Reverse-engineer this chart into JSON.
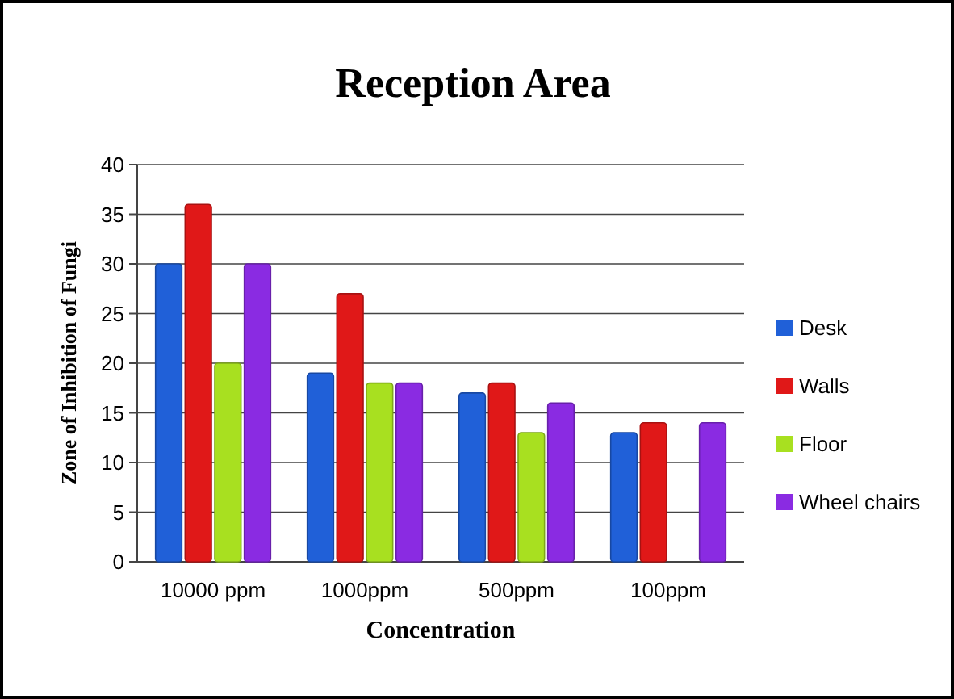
{
  "chart_data": {
    "type": "bar",
    "title": "Reception Area",
    "xlabel": "Concentration",
    "ylabel": "Zone of Inhibition  of Fungi",
    "categories": [
      "10000 ppm",
      "1000ppm",
      "500ppm",
      "100ppm"
    ],
    "series": [
      {
        "name": "Desk",
        "color": "#2060d8",
        "values": [
          30,
          19,
          17,
          13
        ]
      },
      {
        "name": "Walls",
        "color": "#e01818",
        "values": [
          36,
          27,
          18,
          14
        ]
      },
      {
        "name": "Floor",
        "color": "#a8e020",
        "values": [
          20,
          18,
          13,
          null
        ]
      },
      {
        "name": "Wheel chairs",
        "color": "#8a2be2",
        "values": [
          30,
          18,
          16,
          14
        ]
      }
    ],
    "ylim": [
      0,
      40
    ],
    "yticks": [
      0,
      5,
      10,
      15,
      20,
      25,
      30,
      35,
      40
    ],
    "grid": "y",
    "legend": "right"
  }
}
